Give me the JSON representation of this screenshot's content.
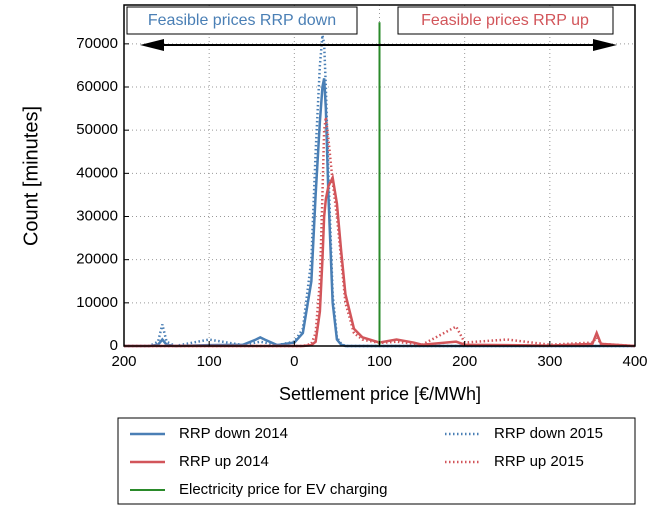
{
  "chart_data": {
    "type": "line",
    "xlabel": "Settlement price [€/MWh]",
    "ylabel": "Count [minutes]",
    "xlim": [
      -200,
      400
    ],
    "ylim": [
      0,
      79000
    ],
    "xticks": [
      {
        "value": -200,
        "label": "200"
      },
      {
        "value": -100,
        "label": "100"
      },
      0,
      100,
      200,
      300,
      400
    ],
    "yticks": [
      0,
      10000,
      20000,
      30000,
      40000,
      50000,
      60000,
      70000
    ],
    "grid": true,
    "annotations": [
      "Feasible prices RRP down",
      "Feasible prices RRP up"
    ],
    "x": [
      -200,
      -170,
      -160,
      -155,
      -150,
      -140,
      -100,
      -60,
      -45,
      -40,
      -35,
      -20,
      0,
      10,
      20,
      25,
      30,
      33,
      35,
      37,
      40,
      45,
      50,
      55,
      60,
      70,
      80,
      100,
      120,
      140,
      150,
      190,
      200,
      250,
      300,
      350,
      355,
      360,
      400
    ],
    "series": [
      {
        "name": "RRP down 2014",
        "color": "#4a7fb5",
        "dash": false,
        "values": [
          0,
          0,
          300,
          1500,
          300,
          0,
          200,
          300,
          1500,
          2000,
          1500,
          200,
          800,
          3000,
          15000,
          35000,
          52000,
          60000,
          62000,
          55000,
          35000,
          10000,
          1500,
          300,
          0,
          0,
          0,
          0,
          0,
          0,
          0,
          0,
          0,
          0,
          0,
          0,
          0,
          0,
          0
        ]
      },
      {
        "name": "RRP down 2015",
        "color": "#4a7fb5",
        "dash": true,
        "values": [
          0,
          0,
          1000,
          5000,
          1000,
          0,
          1500,
          200,
          800,
          1000,
          800,
          200,
          1000,
          4000,
          20000,
          45000,
          65000,
          72000,
          70000,
          60000,
          40000,
          12000,
          2000,
          500,
          0,
          0,
          0,
          0,
          0,
          0,
          0,
          0,
          0,
          0,
          0,
          0,
          0,
          0,
          0
        ]
      },
      {
        "name": "RRP up 2014",
        "color": "#d2555a",
        "dash": false,
        "values": [
          0,
          0,
          0,
          0,
          0,
          0,
          0,
          0,
          0,
          0,
          0,
          0,
          0,
          0,
          200,
          1000,
          8000,
          20000,
          30000,
          34000,
          37000,
          39000,
          33000,
          22000,
          12000,
          4000,
          2000,
          800,
          1500,
          800,
          300,
          1000,
          300,
          200,
          100,
          500,
          3000,
          500,
          0
        ]
      },
      {
        "name": "RRP up 2015",
        "color": "#d2555a",
        "dash": true,
        "values": [
          0,
          0,
          0,
          0,
          0,
          0,
          0,
          0,
          0,
          0,
          0,
          0,
          0,
          0,
          500,
          3000,
          15000,
          35000,
          50000,
          53000,
          48000,
          38000,
          30000,
          20000,
          10000,
          3000,
          1500,
          700,
          1000,
          500,
          300,
          4500,
          800,
          1500,
          300,
          800,
          2000,
          500,
          0
        ]
      }
    ],
    "reference_line": {
      "name": "Electricity price for EV charging",
      "color": "#2a8a2a",
      "x": 100,
      "ymax": 75000
    }
  }
}
